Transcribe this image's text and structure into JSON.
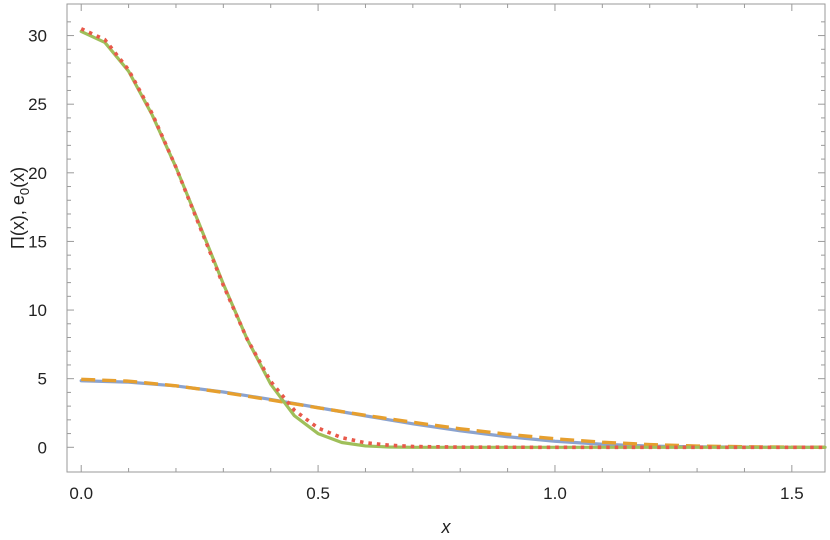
{
  "chart_data": {
    "type": "line",
    "xlabel": "x",
    "ylabel": {
      "text": "Π(x), e",
      "sub": "0",
      "tail": "(x)"
    },
    "xlim": [
      -0.03,
      1.57
    ],
    "ylim": [
      -1.8,
      32.3
    ],
    "x_ticks": [
      {
        "v": 0.0,
        "label": "0.0"
      },
      {
        "v": 0.5,
        "label": "0.5"
      },
      {
        "v": 1.0,
        "label": "1.0"
      },
      {
        "v": 1.5,
        "label": "1.5"
      }
    ],
    "y_ticks": [
      {
        "v": 0,
        "label": "0"
      },
      {
        "v": 5,
        "label": "5"
      },
      {
        "v": 10,
        "label": "10"
      },
      {
        "v": 15,
        "label": "15"
      },
      {
        "v": 20,
        "label": "20"
      },
      {
        "v": 25,
        "label": "25"
      },
      {
        "v": 30,
        "label": "30"
      }
    ],
    "grid": false,
    "series": [
      {
        "color": "#8ba3cf",
        "style": "solid",
        "x": [
          0,
          0.1,
          0.2,
          0.3,
          0.4,
          0.5,
          0.6,
          0.7,
          0.8,
          0.9,
          1.0,
          1.1,
          1.2,
          1.3,
          1.4,
          1.5,
          1.57
        ],
        "y": [
          4.85,
          4.75,
          4.47,
          4.03,
          3.49,
          2.89,
          2.29,
          1.71,
          1.2,
          0.77,
          0.44,
          0.22,
          0.09,
          0.03,
          0.01,
          0.0,
          0.0
        ]
      },
      {
        "color": "#e69f2e",
        "style": "dashed",
        "x": [
          0,
          0.1,
          0.2,
          0.3,
          0.4,
          0.5,
          0.6,
          0.7,
          0.8,
          0.9,
          1.0,
          1.1,
          1.2,
          1.3,
          1.4,
          1.5,
          1.57
        ],
        "y": [
          4.95,
          4.82,
          4.48,
          4.0,
          3.45,
          2.88,
          2.33,
          1.82,
          1.35,
          0.95,
          0.62,
          0.37,
          0.2,
          0.09,
          0.04,
          0.01,
          0.0
        ]
      },
      {
        "color": "#9fbf5a",
        "style": "solid",
        "x": [
          0,
          0.05,
          0.1,
          0.15,
          0.2,
          0.25,
          0.3,
          0.35,
          0.4,
          0.45,
          0.5,
          0.55,
          0.6,
          0.65,
          0.7,
          0.8,
          1.0,
          1.2,
          1.57
        ],
        "y": [
          30.3,
          29.5,
          27.4,
          24.2,
          20.4,
          16.2,
          11.9,
          7.9,
          4.6,
          2.3,
          1.0,
          0.35,
          0.1,
          0.02,
          0.0,
          0.0,
          0.0,
          0.0,
          0.0
        ]
      },
      {
        "color": "#e8594a",
        "style": "dotted",
        "x": [
          0,
          0.05,
          0.1,
          0.15,
          0.2,
          0.25,
          0.3,
          0.35,
          0.4,
          0.45,
          0.5,
          0.55,
          0.6,
          0.65,
          0.7,
          0.8,
          1.0,
          1.2,
          1.57
        ],
        "y": [
          30.5,
          29.7,
          27.5,
          24.3,
          20.4,
          16.1,
          11.8,
          7.9,
          4.8,
          2.7,
          1.4,
          0.7,
          0.33,
          0.15,
          0.06,
          0.01,
          0.0,
          0.0,
          0.0
        ]
      }
    ]
  }
}
